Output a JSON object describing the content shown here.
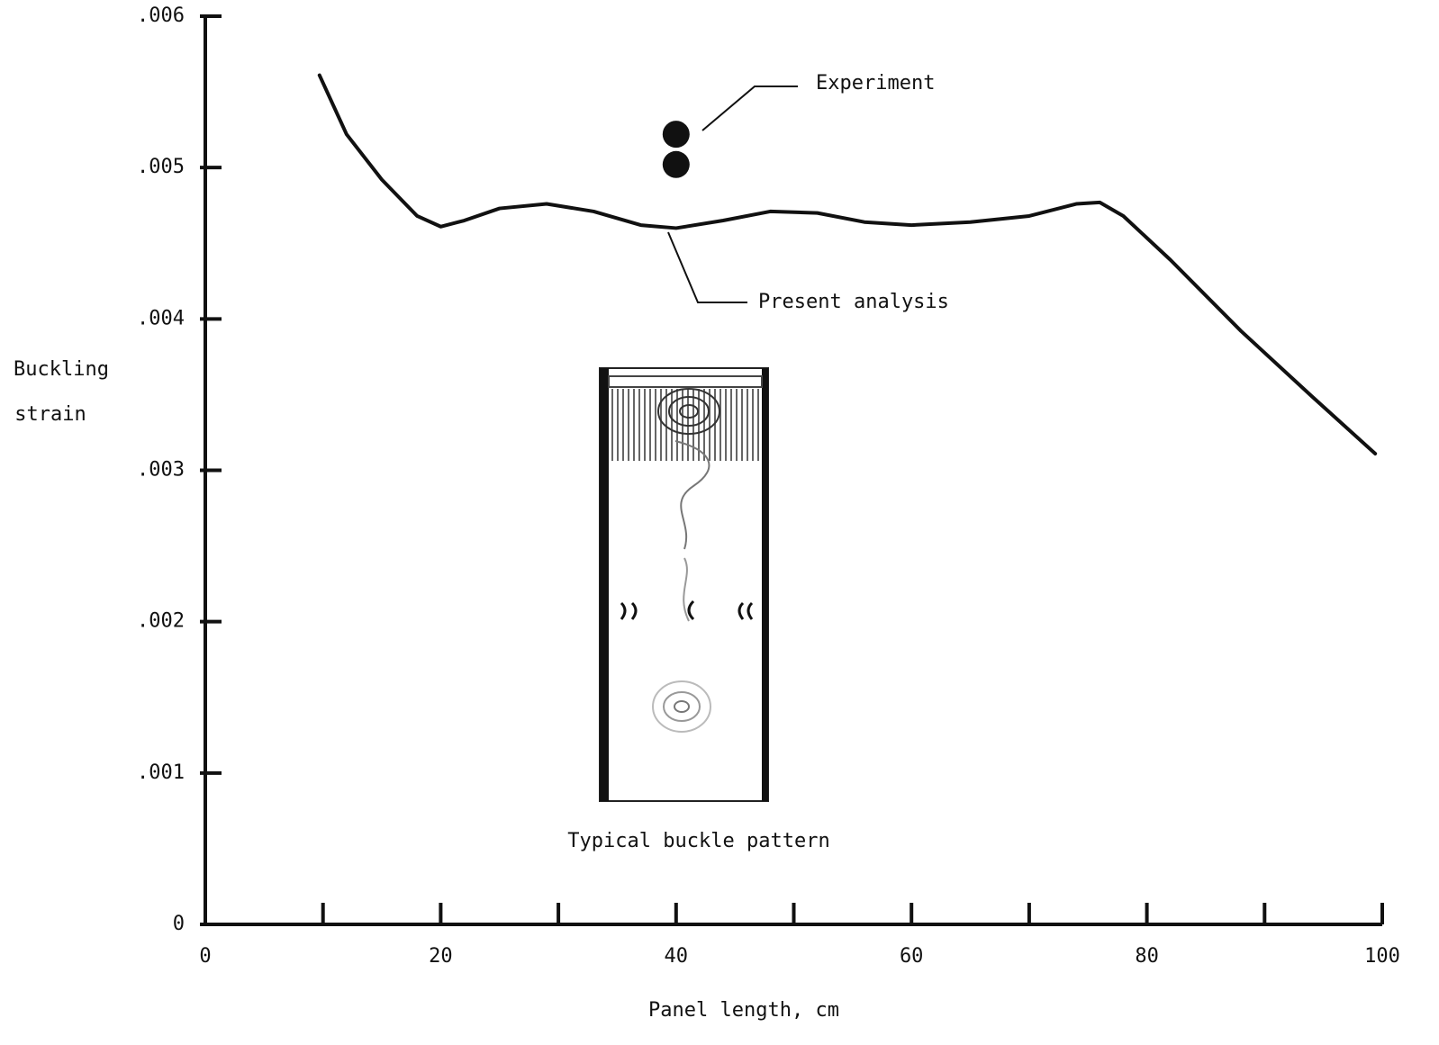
{
  "chart_data": {
    "type": "line",
    "xlabel": "Panel length, cm",
    "ylabel": [
      "Buckling",
      "strain"
    ],
    "inset_caption": "Typical buckle pattern",
    "xlim": [
      0,
      100
    ],
    "ylim": [
      0,
      0.006
    ],
    "xticks": [
      0,
      20,
      40,
      60,
      80,
      100
    ],
    "xminor_ticks": [
      10,
      30,
      50,
      70,
      90
    ],
    "yticks": [
      0,
      {
        "value": 0.001,
        "label": ".001"
      },
      {
        "value": 0.002,
        "label": ".002"
      },
      {
        "value": 0.003,
        "label": ".003"
      },
      {
        "value": 0.004,
        "label": ".004"
      },
      {
        "value": 0.005,
        "label": ".005"
      },
      {
        "value": 0.006,
        "label": ".006"
      }
    ],
    "series": [
      {
        "name": "Present analysis",
        "type": "line",
        "color": "#111111",
        "x": [
          9.7,
          12,
          15,
          18,
          20,
          22,
          25,
          29,
          33,
          37,
          40,
          44,
          48,
          52,
          56,
          60,
          65,
          70,
          74,
          76,
          78,
          82,
          88,
          94,
          99.4
        ],
        "values": [
          0.00561,
          0.00522,
          0.00492,
          0.00468,
          0.00461,
          0.00465,
          0.00473,
          0.00476,
          0.00471,
          0.00462,
          0.0046,
          0.00465,
          0.00471,
          0.0047,
          0.00464,
          0.00462,
          0.00464,
          0.00468,
          0.00476,
          0.00477,
          0.00468,
          0.00439,
          0.00392,
          0.00349,
          0.00311
        ]
      },
      {
        "name": "Experiment",
        "type": "scatter",
        "color": "#111111",
        "x": [
          40,
          40
        ],
        "values": [
          0.00522,
          0.00502
        ]
      }
    ]
  }
}
